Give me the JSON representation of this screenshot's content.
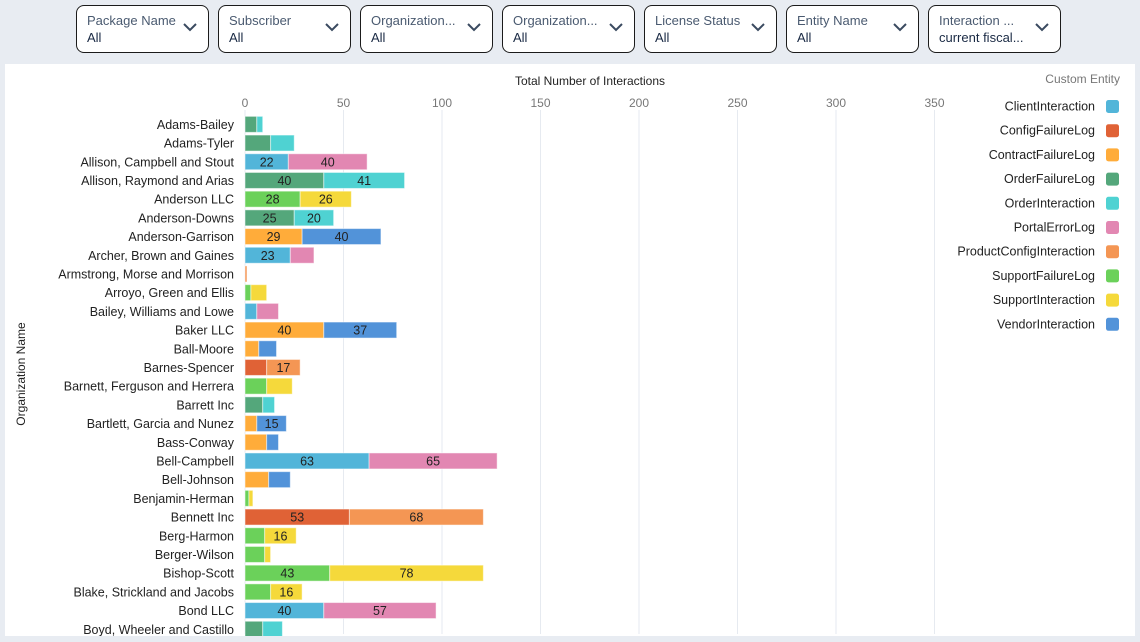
{
  "filters": [
    {
      "label": "Package Name",
      "value": "All"
    },
    {
      "label": "Subscriber",
      "value": "All"
    },
    {
      "label": "Organization...",
      "value": "All"
    },
    {
      "label": "Organization...",
      "value": "All"
    },
    {
      "label": "License Status",
      "value": "All"
    },
    {
      "label": "Entity Name",
      "value": "All"
    },
    {
      "label": "Interaction ...",
      "value": "current fiscal..."
    }
  ],
  "chart_data": {
    "type": "bar",
    "orientation": "horizontal",
    "stacked": true,
    "title": "Total Number of Interactions",
    "xlabel": "Total Number of Interactions",
    "ylabel": "Organization Name",
    "xlim": [
      0,
      350
    ],
    "xticks": [
      0,
      50,
      100,
      150,
      200,
      250,
      300,
      350
    ],
    "grid": true,
    "legend": {
      "title": "Custom Entity",
      "placement": "top-right",
      "entries": [
        {
          "name": "ClientInteraction",
          "color": "#52b5d9"
        },
        {
          "name": "ConfigFailureLog",
          "color": "#e06236"
        },
        {
          "name": "ContractFailureLog",
          "color": "#ffac3a"
        },
        {
          "name": "OrderFailureLog",
          "color": "#54a77b"
        },
        {
          "name": "OrderInteraction",
          "color": "#4fd2d2"
        },
        {
          "name": "PortalErrorLog",
          "color": "#e287b2"
        },
        {
          "name": "ProductConfigInteraction",
          "color": "#f49654"
        },
        {
          "name": "SupportFailureLog",
          "color": "#6bd15a"
        },
        {
          "name": "SupportInteraction",
          "color": "#f5d93b"
        },
        {
          "name": "VendorInteraction",
          "color": "#5293d9"
        }
      ]
    },
    "categories": [
      "Adams-Bailey",
      "Adams-Tyler",
      "Allison, Campbell and Stout",
      "Allison, Raymond and Arias",
      "Anderson LLC",
      "Anderson-Downs",
      "Anderson-Garrison",
      "Archer, Brown and Gaines",
      "Armstrong, Morse and Morrison",
      "Arroyo, Green and Ellis",
      "Bailey, Williams and Lowe",
      "Baker LLC",
      "Ball-Moore",
      "Barnes-Spencer",
      "Barnett, Ferguson and Herrera",
      "Barrett Inc",
      "Bartlett, Garcia and Nunez",
      "Bass-Conway",
      "Bell-Campbell",
      "Bell-Johnson",
      "Benjamin-Herman",
      "Bennett Inc",
      "Berg-Harmon",
      "Berger-Wilson",
      "Bishop-Scott",
      "Blake, Strickland and Jacobs",
      "Bond LLC",
      "Boyd, Wheeler and Castillo"
    ],
    "rows": [
      [
        {
          "s": "OrderFailureLog",
          "v": 6
        },
        {
          "s": "OrderInteraction",
          "v": 3
        }
      ],
      [
        {
          "s": "OrderFailureLog",
          "v": 13
        },
        {
          "s": "OrderInteraction",
          "v": 12
        }
      ],
      [
        {
          "s": "ClientInteraction",
          "v": 22,
          "label": true
        },
        {
          "s": "PortalErrorLog",
          "v": 40,
          "label": true
        }
      ],
      [
        {
          "s": "OrderFailureLog",
          "v": 40,
          "label": true
        },
        {
          "s": "OrderInteraction",
          "v": 41,
          "label": true
        }
      ],
      [
        {
          "s": "SupportFailureLog",
          "v": 28,
          "label": true
        },
        {
          "s": "SupportInteraction",
          "v": 26,
          "label": true
        }
      ],
      [
        {
          "s": "OrderFailureLog",
          "v": 25,
          "label": true
        },
        {
          "s": "OrderInteraction",
          "v": 20,
          "label": true
        }
      ],
      [
        {
          "s": "ContractFailureLog",
          "v": 29,
          "label": true
        },
        {
          "s": "VendorInteraction",
          "v": 40,
          "label": true
        }
      ],
      [
        {
          "s": "ClientInteraction",
          "v": 23,
          "label": true
        },
        {
          "s": "PortalErrorLog",
          "v": 12
        }
      ],
      [
        {
          "s": "ProductConfigInteraction",
          "v": 1
        }
      ],
      [
        {
          "s": "SupportFailureLog",
          "v": 3
        },
        {
          "s": "SupportInteraction",
          "v": 8
        }
      ],
      [
        {
          "s": "ClientInteraction",
          "v": 6
        },
        {
          "s": "PortalErrorLog",
          "v": 11
        }
      ],
      [
        {
          "s": "ContractFailureLog",
          "v": 40,
          "label": true
        },
        {
          "s": "VendorInteraction",
          "v": 37,
          "label": true
        }
      ],
      [
        {
          "s": "ContractFailureLog",
          "v": 7
        },
        {
          "s": "VendorInteraction",
          "v": 9
        }
      ],
      [
        {
          "s": "ConfigFailureLog",
          "v": 11
        },
        {
          "s": "ProductConfigInteraction",
          "v": 17,
          "label": true
        }
      ],
      [
        {
          "s": "SupportFailureLog",
          "v": 11
        },
        {
          "s": "SupportInteraction",
          "v": 13
        }
      ],
      [
        {
          "s": "OrderFailureLog",
          "v": 9
        },
        {
          "s": "OrderInteraction",
          "v": 6
        }
      ],
      [
        {
          "s": "ContractFailureLog",
          "v": 6
        },
        {
          "s": "VendorInteraction",
          "v": 15,
          "label": true
        }
      ],
      [
        {
          "s": "ContractFailureLog",
          "v": 11
        },
        {
          "s": "VendorInteraction",
          "v": 6
        }
      ],
      [
        {
          "s": "ClientInteraction",
          "v": 63,
          "label": true
        },
        {
          "s": "PortalErrorLog",
          "v": 65,
          "label": true
        }
      ],
      [
        {
          "s": "ContractFailureLog",
          "v": 12
        },
        {
          "s": "VendorInteraction",
          "v": 11
        }
      ],
      [
        {
          "s": "SupportFailureLog",
          "v": 2
        },
        {
          "s": "SupportInteraction",
          "v": 2
        }
      ],
      [
        {
          "s": "ConfigFailureLog",
          "v": 53,
          "label": true
        },
        {
          "s": "ProductConfigInteraction",
          "v": 68,
          "label": true
        }
      ],
      [
        {
          "s": "SupportFailureLog",
          "v": 10
        },
        {
          "s": "SupportInteraction",
          "v": 16,
          "label": true
        }
      ],
      [
        {
          "s": "SupportFailureLog",
          "v": 10
        },
        {
          "s": "SupportInteraction",
          "v": 3
        }
      ],
      [
        {
          "s": "SupportFailureLog",
          "v": 43,
          "label": true
        },
        {
          "s": "SupportInteraction",
          "v": 78,
          "label": true
        }
      ],
      [
        {
          "s": "SupportFailureLog",
          "v": 13
        },
        {
          "s": "SupportInteraction",
          "v": 16,
          "label": true
        }
      ],
      [
        {
          "s": "ClientInteraction",
          "v": 40,
          "label": true
        },
        {
          "s": "PortalErrorLog",
          "v": 57,
          "label": true
        }
      ],
      [
        {
          "s": "OrderFailureLog",
          "v": 9
        },
        {
          "s": "OrderInteraction",
          "v": 10
        }
      ]
    ]
  }
}
